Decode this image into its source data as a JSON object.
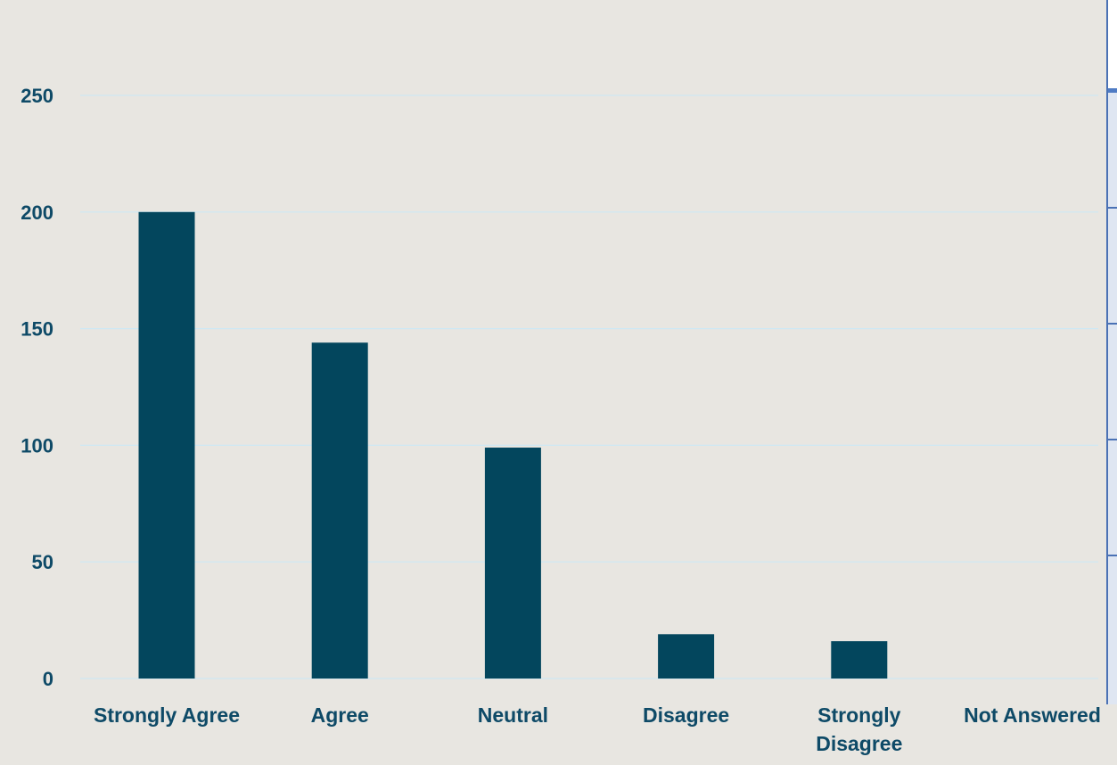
{
  "chart_data": {
    "type": "bar",
    "categories": [
      "Strongly Agree",
      "Agree",
      "Neutral",
      "Disagree",
      "Strongly Disagree",
      "Not Answered"
    ],
    "values": [
      200,
      144,
      99,
      19,
      16,
      0
    ],
    "yticks": [
      0,
      50,
      100,
      150,
      200,
      250
    ],
    "ylim": [
      0,
      250
    ],
    "grid": true,
    "colors": {
      "bar": "#03465d",
      "text": "#0e4a67",
      "grid": "#cde8f4",
      "background": "#e8e6e1"
    }
  }
}
